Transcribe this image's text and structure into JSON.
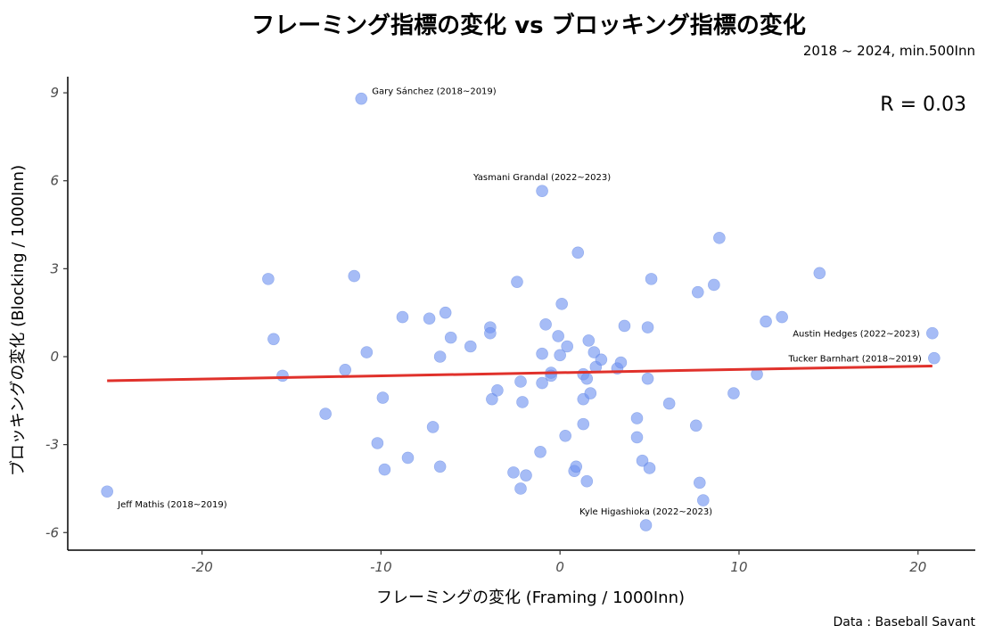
{
  "chart_data": {
    "type": "scatter",
    "title": "フレーミング指標の変化 vs ブロッキング指標の変化",
    "subtitle": "2018 ~ 2024, min.500Inn",
    "caption": "Data : Baseball Savant",
    "xlabel": "フレーミングの変化 (Framing / 1000Inn)",
    "ylabel": "ブロッキングの変化 (Blocking / 1000Inn)",
    "xlim": [
      -27.5,
      23.2
    ],
    "ylim": [
      -6.6,
      9.55
    ],
    "x_ticks": [
      -20,
      -10,
      0,
      10,
      20
    ],
    "y_ticks": [
      -6,
      -3,
      0,
      3,
      6,
      9
    ],
    "grid": false,
    "annotation": "R =  0.03",
    "point_color": "#6f93f0",
    "line_color": "#e0312b",
    "regression": {
      "x": [
        -25.3,
        20.8
      ],
      "y": [
        -0.82,
        -0.32
      ]
    },
    "points": [
      {
        "x": -25.3,
        "y": -4.6,
        "label": "Jeff Mathis (2018~2019)"
      },
      {
        "x": -11.1,
        "y": 8.8,
        "label": "Gary Sánchez (2018~2019)"
      },
      {
        "x": -1.0,
        "y": 5.65,
        "label": "Yasmani Grandal (2022~2023)"
      },
      {
        "x": 4.8,
        "y": -5.75,
        "label": "Kyle Higashioka (2022~2023)"
      },
      {
        "x": 20.8,
        "y": 0.8,
        "label": "Austin Hedges (2022~2023)"
      },
      {
        "x": 20.9,
        "y": -0.05,
        "label": "Tucker Barnhart (2018~2019)"
      },
      {
        "x": -16.3,
        "y": 2.65
      },
      {
        "x": -16.0,
        "y": 0.6
      },
      {
        "x": -15.5,
        "y": -0.65
      },
      {
        "x": -13.1,
        "y": -1.95
      },
      {
        "x": -12.0,
        "y": -0.45
      },
      {
        "x": -11.5,
        "y": 2.75
      },
      {
        "x": -10.8,
        "y": 0.15
      },
      {
        "x": -10.2,
        "y": -2.95
      },
      {
        "x": -9.9,
        "y": -1.4
      },
      {
        "x": -9.8,
        "y": -3.85
      },
      {
        "x": -8.8,
        "y": 1.35
      },
      {
        "x": -8.5,
        "y": -3.45
      },
      {
        "x": -7.3,
        "y": 1.3
      },
      {
        "x": -7.1,
        "y": -2.4
      },
      {
        "x": -6.7,
        "y": 0.0
      },
      {
        "x": -6.7,
        "y": -3.75
      },
      {
        "x": -6.4,
        "y": 1.5
      },
      {
        "x": -6.1,
        "y": 0.65
      },
      {
        "x": -5.0,
        "y": 0.35
      },
      {
        "x": -3.9,
        "y": 1.0
      },
      {
        "x": -3.9,
        "y": 0.8
      },
      {
        "x": -3.8,
        "y": -1.45
      },
      {
        "x": -3.5,
        "y": -1.15
      },
      {
        "x": -2.6,
        "y": -3.95
      },
      {
        "x": -2.4,
        "y": 2.55
      },
      {
        "x": -2.2,
        "y": -0.85
      },
      {
        "x": -2.2,
        "y": -4.5
      },
      {
        "x": -2.1,
        "y": -1.55
      },
      {
        "x": -1.9,
        "y": -4.05
      },
      {
        "x": -1.1,
        "y": -3.25
      },
      {
        "x": -1.0,
        "y": 0.1
      },
      {
        "x": -1.0,
        "y": -0.9
      },
      {
        "x": -0.8,
        "y": 1.1
      },
      {
        "x": -0.5,
        "y": -0.55
      },
      {
        "x": -0.5,
        "y": -0.65
      },
      {
        "x": -0.1,
        "y": 0.7
      },
      {
        "x": 0.0,
        "y": 0.05
      },
      {
        "x": 0.1,
        "y": 1.8
      },
      {
        "x": 0.3,
        "y": -2.7
      },
      {
        "x": 0.4,
        "y": 0.35
      },
      {
        "x": 0.8,
        "y": -3.9
      },
      {
        "x": 0.9,
        "y": -3.75
      },
      {
        "x": 1.0,
        "y": 3.55
      },
      {
        "x": 1.3,
        "y": -0.6
      },
      {
        "x": 1.3,
        "y": -1.45
      },
      {
        "x": 1.3,
        "y": -2.3
      },
      {
        "x": 1.5,
        "y": -4.25
      },
      {
        "x": 1.5,
        "y": -0.75
      },
      {
        "x": 1.6,
        "y": 0.55
      },
      {
        "x": 1.7,
        "y": -1.25
      },
      {
        "x": 1.9,
        "y": 0.15
      },
      {
        "x": 2.0,
        "y": -0.35
      },
      {
        "x": 2.3,
        "y": -0.1
      },
      {
        "x": 3.2,
        "y": -0.4
      },
      {
        "x": 3.4,
        "y": -0.2
      },
      {
        "x": 3.6,
        "y": 1.05
      },
      {
        "x": 4.3,
        "y": -2.1
      },
      {
        "x": 4.3,
        "y": -2.75
      },
      {
        "x": 4.6,
        "y": -3.55
      },
      {
        "x": 4.9,
        "y": -0.75
      },
      {
        "x": 4.9,
        "y": 1.0
      },
      {
        "x": 5.0,
        "y": -3.8
      },
      {
        "x": 5.1,
        "y": 2.65
      },
      {
        "x": 6.1,
        "y": -1.6
      },
      {
        "x": 7.6,
        "y": -2.35
      },
      {
        "x": 7.7,
        "y": 2.2
      },
      {
        "x": 7.8,
        "y": -4.3
      },
      {
        "x": 8.0,
        "y": -4.9
      },
      {
        "x": 8.6,
        "y": 2.45
      },
      {
        "x": 8.9,
        "y": 4.05
      },
      {
        "x": 9.7,
        "y": -1.25
      },
      {
        "x": 11.0,
        "y": -0.6
      },
      {
        "x": 11.5,
        "y": 1.2
      },
      {
        "x": 12.4,
        "y": 1.35
      },
      {
        "x": 14.5,
        "y": 2.85
      }
    ]
  }
}
